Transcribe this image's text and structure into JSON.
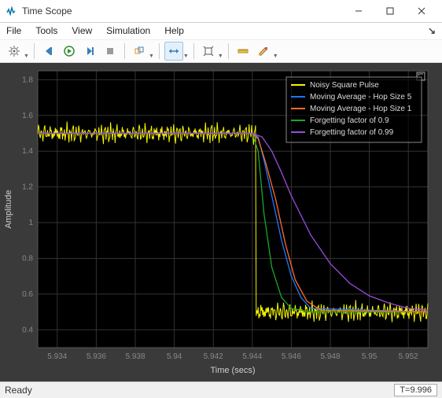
{
  "window": {
    "title": "Time Scope",
    "icon_color": "#0076a8"
  },
  "menubar": [
    "File",
    "Tools",
    "View",
    "Simulation",
    "Help"
  ],
  "statusbar": {
    "left": "Ready",
    "right": "T=9.996"
  },
  "plot": {
    "type": "line",
    "background_color": "#000000",
    "surround_color": "#3a3a3a",
    "xlabel": "Time (secs)",
    "ylabel": "Amplitude",
    "label_color": "#cfcfcf",
    "label_fontsize": 11,
    "xlim": [
      5.933,
      5.953
    ],
    "ylim": [
      0.3,
      1.85
    ],
    "xticks": [
      5.934,
      5.936,
      5.938,
      5.94,
      5.942,
      5.944,
      5.946,
      5.948,
      5.95,
      5.952
    ],
    "yticks": [
      0.4,
      0.6,
      0.8,
      1.0,
      1.2,
      1.4,
      1.6,
      1.8
    ],
    "tick_color": "#888888",
    "tick_fontsize": 10,
    "grid_color": "#333333",
    "legend": {
      "position": "top-right",
      "background": "rgba(0,0,0,0.6)",
      "border_color": "#888888",
      "text_color": "#dcdcdc",
      "fontsize": 10,
      "items": [
        {
          "label": "Noisy Square Pulse",
          "color": "#f5f500"
        },
        {
          "label": "Moving Average - Hop Size 5",
          "color": "#1f77ff"
        },
        {
          "label": "Moving Average - Hop Size 1",
          "color": "#ff6a2f"
        },
        {
          "label": "Forgetting factor of 0.9",
          "color": "#17a82a"
        },
        {
          "label": "Forgetting factor of 0.99",
          "color": "#9a4be0"
        }
      ]
    },
    "noisy_high_mean": 1.5,
    "noisy_low_mean": 0.5,
    "noise_amplitude": 0.055,
    "transition_x": 5.9442,
    "series": {
      "blue": {
        "color": "#1f77ff",
        "pts": [
          [
            5.933,
            1.5
          ],
          [
            5.944,
            1.5
          ],
          [
            5.9443,
            1.48
          ],
          [
            5.9446,
            1.35
          ],
          [
            5.945,
            1.15
          ],
          [
            5.9455,
            0.9
          ],
          [
            5.946,
            0.7
          ],
          [
            5.9465,
            0.58
          ],
          [
            5.947,
            0.52
          ],
          [
            5.953,
            0.5
          ]
        ]
      },
      "orange": {
        "color": "#ff6a2f",
        "pts": [
          [
            5.933,
            1.5
          ],
          [
            5.944,
            1.5
          ],
          [
            5.9443,
            1.47
          ],
          [
            5.9447,
            1.33
          ],
          [
            5.9452,
            1.13
          ],
          [
            5.9457,
            0.88
          ],
          [
            5.9462,
            0.68
          ],
          [
            5.9468,
            0.56
          ],
          [
            5.9475,
            0.51
          ],
          [
            5.953,
            0.5
          ]
        ]
      },
      "green": {
        "color": "#17a82a",
        "pts": [
          [
            5.933,
            1.5
          ],
          [
            5.944,
            1.5
          ],
          [
            5.9443,
            1.4
          ],
          [
            5.9446,
            1.05
          ],
          [
            5.945,
            0.75
          ],
          [
            5.9455,
            0.58
          ],
          [
            5.946,
            0.52
          ],
          [
            5.947,
            0.5
          ],
          [
            5.953,
            0.5
          ]
        ]
      },
      "purple": {
        "color": "#9a4be0",
        "pts": [
          [
            5.933,
            1.5
          ],
          [
            5.944,
            1.5
          ],
          [
            5.9445,
            1.48
          ],
          [
            5.945,
            1.4
          ],
          [
            5.9455,
            1.28
          ],
          [
            5.946,
            1.15
          ],
          [
            5.947,
            0.93
          ],
          [
            5.948,
            0.77
          ],
          [
            5.949,
            0.66
          ],
          [
            5.95,
            0.59
          ],
          [
            5.951,
            0.55
          ],
          [
            5.952,
            0.52
          ],
          [
            5.953,
            0.51
          ]
        ]
      }
    }
  }
}
